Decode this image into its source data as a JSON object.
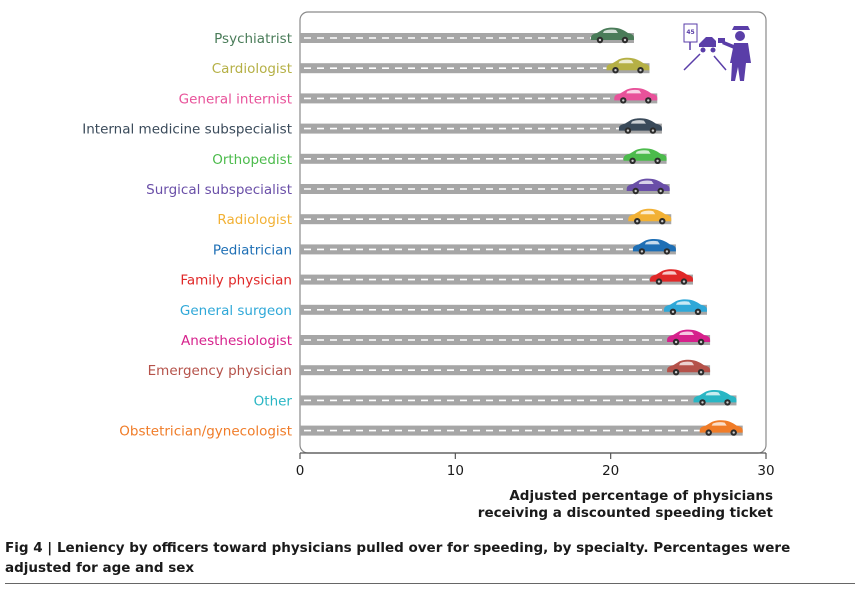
{
  "figure": {
    "caption_label": "Fig 4",
    "caption_sep": " | ",
    "caption_text": "Leniency by officers toward physicians pulled over for speeding, by specialty. Percentages were adjusted for age and sex"
  },
  "chart_data": {
    "type": "bar",
    "title": "",
    "xlabel_line1": "Adjusted percentage of physicians",
    "xlabel_line2": "receiving a discounted speeding ticket",
    "ylabel": "",
    "xlim": [
      0,
      30
    ],
    "xticks": [
      "0",
      "10",
      "20",
      "30"
    ],
    "xtick_values": [
      0,
      10,
      20,
      30
    ],
    "categories": [
      "Psychiatrist",
      "Cardiologist",
      "General internist",
      "Internal medicine subspecialist",
      "Orthopedist",
      "Surgical subspecialist",
      "Radiologist",
      "Pediatrician",
      "Family physician",
      "General surgeon",
      "Anesthesiologist",
      "Emergency physician",
      "Other",
      "Obstetrician/gynecologist"
    ],
    "values": [
      21.5,
      22.5,
      23.0,
      23.3,
      23.6,
      23.8,
      23.9,
      24.2,
      25.3,
      26.2,
      26.4,
      26.4,
      28.1,
      28.5
    ],
    "colors": [
      "#4a7c59",
      "#b5b045",
      "#e8529a",
      "#3a4a5a",
      "#4cbb4c",
      "#6a4fa8",
      "#f2b135",
      "#1e6fb5",
      "#e02828",
      "#2fa8d8",
      "#d6218c",
      "#b5524a",
      "#29b6c4",
      "#f07c28"
    ],
    "bar_color": "#a6a6a6",
    "legend": "none",
    "grid": false,
    "icon_sign_text": "45"
  }
}
